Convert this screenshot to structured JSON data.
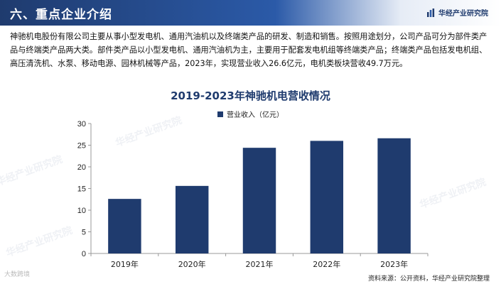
{
  "header": {
    "title": "六、重点企业介绍",
    "brand": "华经产业研究院",
    "brand_icon": "bar-chart-icon"
  },
  "intro_text": "神驰机电股份有限公司主要从事小型发电机、通用汽油机以及终端类产品的研发、制造和销售。按照用途划分，公司产品可分为部件类产品与终端类产品两大类。部件类产品以小型发电机、通用汽油机为主，主要用于配套发电机组等终端类产品；终端类产品包括发电机组、高压清洗机、水泵、移动电源、园林机械等产品，2023年，实现营业收入26.6亿元，电机类板块营收49.7万元。",
  "watermark": "华经产业研究院",
  "corner_logo": "大数跨境",
  "source": "资料来源：公开资料，华经产业研究院整理",
  "colors": {
    "bar": "#1f3b6e",
    "title": "#1f3b6e"
  },
  "chart_data": {
    "type": "bar",
    "title": "2019-2023年神驰机电营收情况",
    "categories": [
      "2019年",
      "2020年",
      "2021年",
      "2022年",
      "2023年"
    ],
    "series": [
      {
        "name": "营业收入（亿元）",
        "values": [
          12.6,
          15.6,
          24.4,
          26.0,
          26.6
        ]
      }
    ],
    "ylim": [
      0,
      30
    ],
    "yticks": [
      0,
      5,
      10,
      15,
      20,
      25,
      30
    ],
    "grid": false,
    "legend": "top-center"
  }
}
